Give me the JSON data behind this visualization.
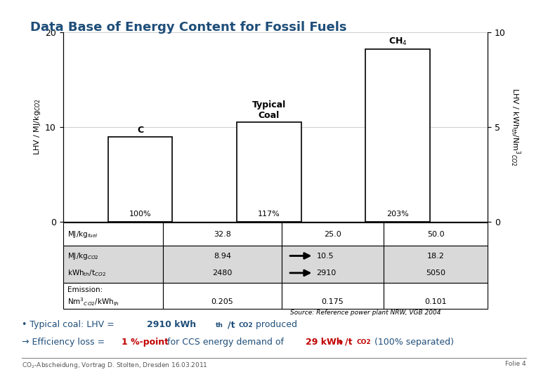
{
  "title": "Data Base of Energy Content for Fossil Fuels",
  "title_color": "#1F4E79",
  "bars": {
    "categories": [
      "C",
      "Typical\nCoal",
      "CH$_4$"
    ],
    "values": [
      8.94,
      10.5,
      18.2
    ],
    "percentages": [
      "100%",
      "117%",
      "203%"
    ],
    "bar_color": "#FFFFFF",
    "bar_edgecolor": "#000000"
  },
  "ylim_left": [
    0,
    20
  ],
  "ylim_right": [
    0,
    10
  ],
  "ylabel_left": "LHV / MJ/kg$_{CO2}$",
  "ylabel_right": "LHV / kWh$_{th}$/Nm$^3$$_{CO2}$",
  "table": {
    "shade_color": "#D9D9D9"
  },
  "source_text": "Source: Reference power plant NRW, VGB 2004",
  "footer_left": "CO$_2$-Abscheidung, Vortrag D. Stolten, Dresden 16.03.2011",
  "footer_right": "Folie 4",
  "bg_color": "#FFFFFF",
  "text_color_blue": "#1F4E79",
  "text_color_red": "#C00000"
}
